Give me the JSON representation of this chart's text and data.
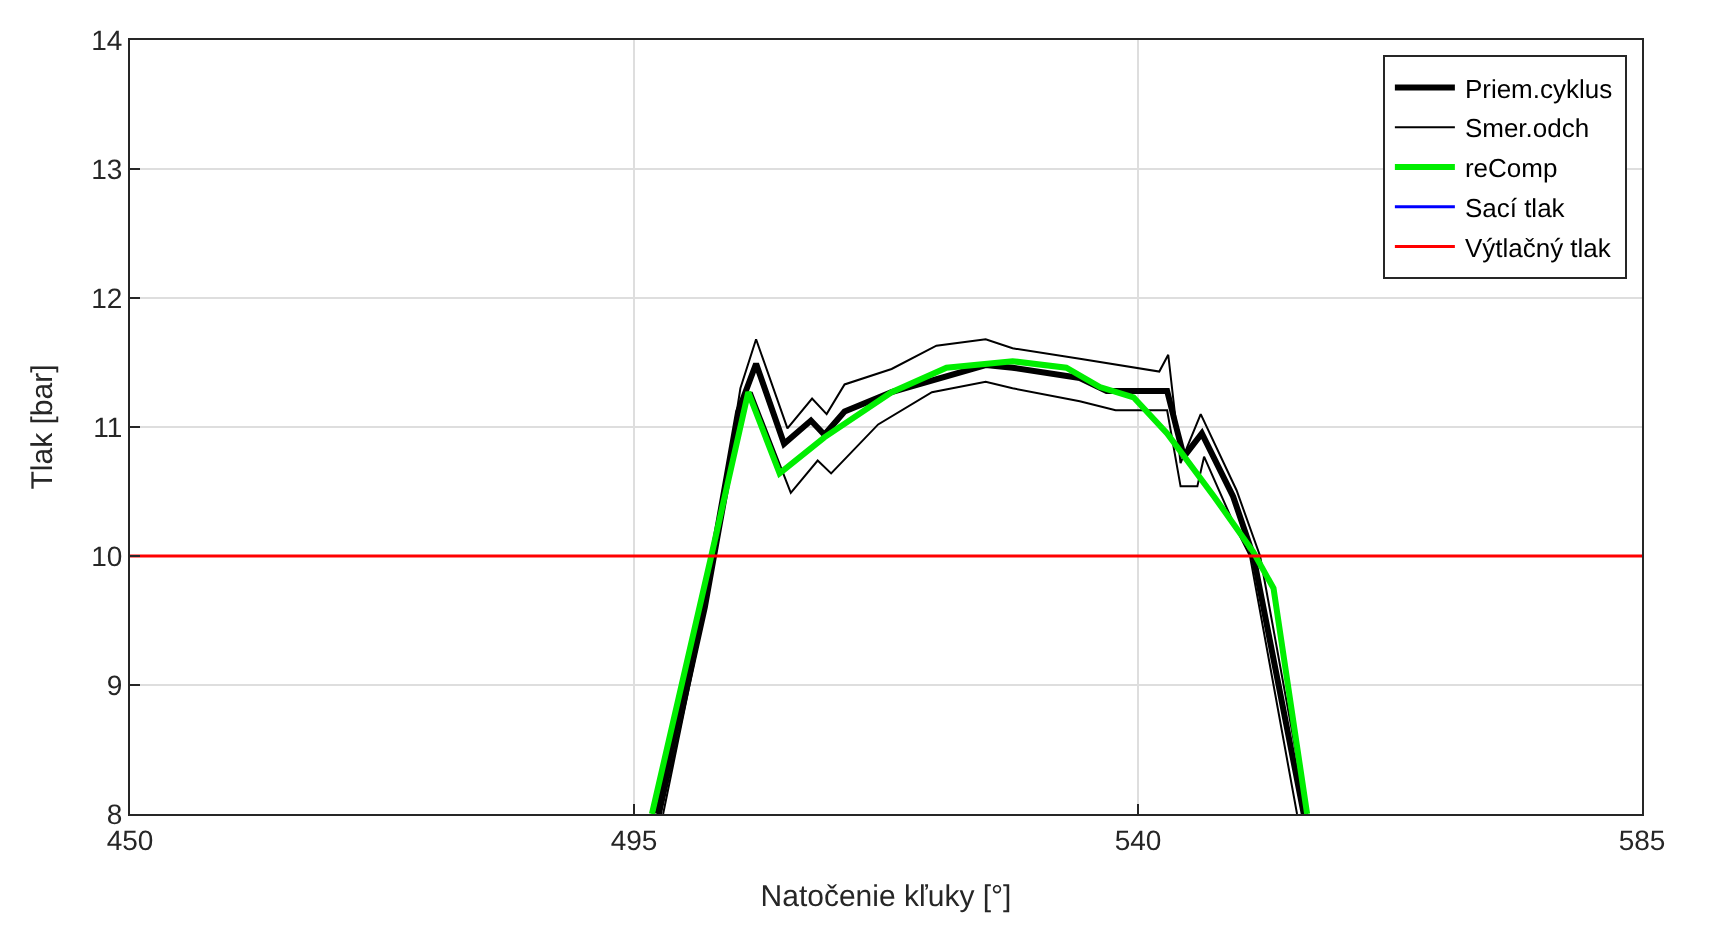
{
  "chart_data": {
    "type": "line",
    "xlabel": "Natočenie kľuky [°]",
    "ylabel": "Tlak [bar]",
    "xlim": [
      450,
      585
    ],
    "xticks": [
      450,
      495,
      540,
      585
    ],
    "ylim": [
      8,
      14
    ],
    "yticks": [
      8,
      9,
      10,
      11,
      12,
      13,
      14
    ],
    "grid": true,
    "legend": "top right",
    "marker": "none",
    "line_style": "solid",
    "series": [
      {
        "name": "Priem.cyklus",
        "color": "#000000",
        "x": [
          497.1,
          501.3,
          504.3,
          505.9,
          508.4,
          510.8,
          512,
          513.8,
          518,
          526.4,
          528.8,
          534.8,
          537.2,
          542.6,
          543.5,
          544.1,
          545.7,
          548.5,
          550.3,
          554.8
        ],
        "values": [
          8,
          9.65,
          11.12,
          11.49,
          10.87,
          11.05,
          10.94,
          11.12,
          11.27,
          11.48,
          11.46,
          11.38,
          11.28,
          11.28,
          10.97,
          10.77,
          10.95,
          10.46,
          10,
          8
        ]
      },
      {
        "name": "Smer.odch",
        "color": "#000000",
        "x": [
          497.6,
          501.6,
          504.5,
          505.9,
          508.7,
          510.9,
          512.2,
          513.8,
          518,
          522,
          526.4,
          528.8,
          534.8,
          541.9,
          542.7,
          543.8,
          545.6,
          548.8,
          550.9,
          555.1
        ],
        "values": [
          8,
          9.7,
          11.3,
          11.68,
          10.99,
          11.22,
          11.1,
          11.33,
          11.45,
          11.63,
          11.68,
          11.61,
          11.53,
          11.43,
          11.56,
          10.72,
          11.1,
          10.51,
          10,
          8
        ]
      },
      {
        "color": "#000000",
        "x": [
          497.4,
          501.5,
          504.6,
          505.5,
          509,
          511.4,
          512.6,
          516.8,
          521.6,
          526.4,
          528.8,
          534.8,
          538,
          542.6,
          543.8,
          545.3,
          545.9,
          548.5,
          550,
          554.2
        ],
        "values": [
          8,
          9.6,
          11.1,
          11.27,
          10.49,
          10.74,
          10.64,
          11.02,
          11.27,
          11.35,
          11.3,
          11.2,
          11.13,
          11.13,
          10.54,
          10.54,
          10.77,
          10.26,
          10,
          8
        ]
      },
      {
        "name": "reComp",
        "color": "#00ee00",
        "x": [
          496.6,
          501.9,
          505.2,
          508,
          512,
          518,
          522.9,
          528.8,
          533.6,
          536.6,
          539.6,
          542.6,
          546.8,
          550.3,
          552.1,
          555.1
        ],
        "values": [
          8,
          10,
          11.27,
          10.64,
          10.92,
          11.27,
          11.46,
          11.51,
          11.46,
          11.31,
          11.23,
          10.95,
          10.46,
          10.03,
          9.75,
          8
        ]
      },
      {
        "name": "Sací tlak",
        "color": "#0000ff"
      },
      {
        "name": "Výtlačný tlak",
        "color": "#ff0000",
        "x": [
          450,
          585
        ],
        "values": [
          10,
          10
        ]
      }
    ]
  }
}
